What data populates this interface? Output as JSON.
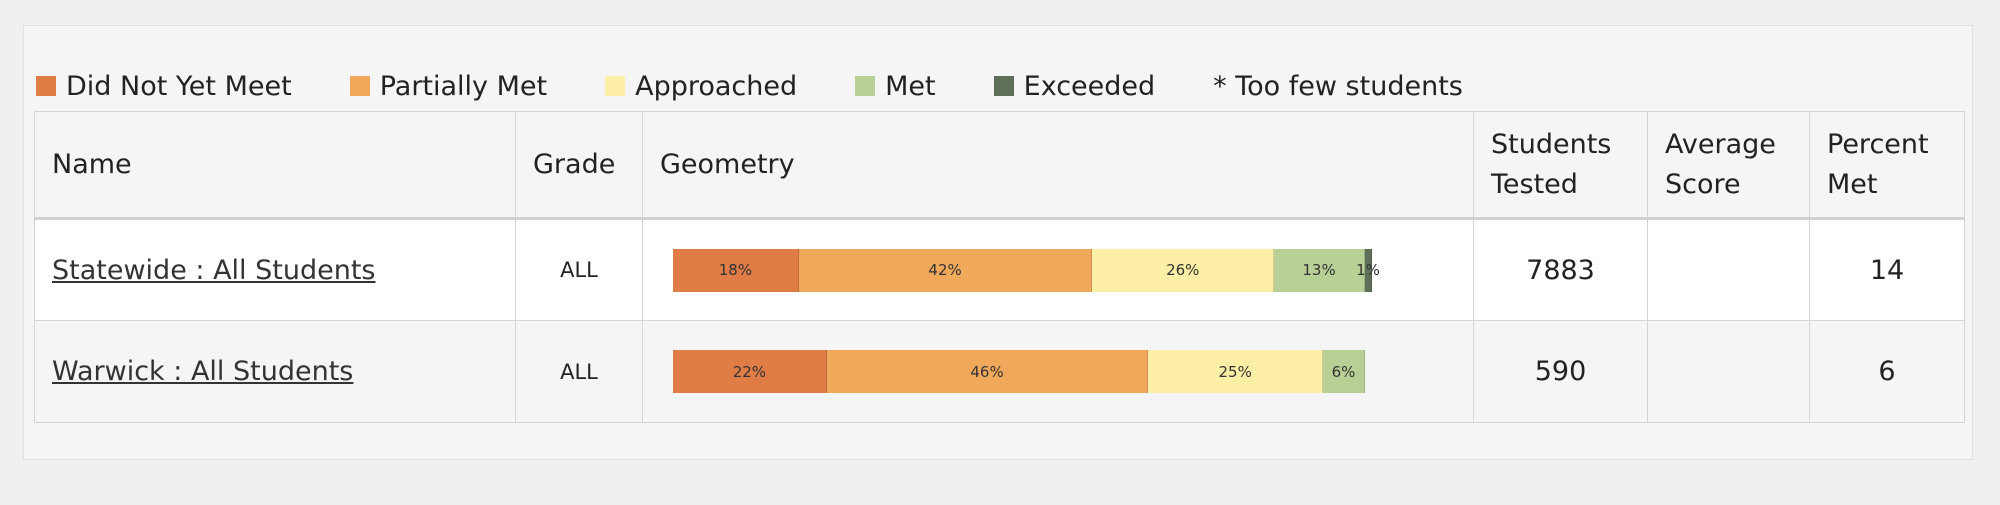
{
  "legend": [
    {
      "label": "Did Not Yet Meet",
      "color": "#e07c46"
    },
    {
      "label": "Partially Met",
      "color": "#f0a85b"
    },
    {
      "label": "Approached",
      "color": "#fdf0a6"
    },
    {
      "label": "Met",
      "color": "#b8cf96"
    },
    {
      "label": "Exceeded",
      "color": "#5e7158"
    }
  ],
  "legend_note": "* Too few students",
  "table": {
    "headers": [
      "Name",
      "Grade",
      "Geometry",
      "Students Tested",
      "Average Score",
      "Percent Met"
    ],
    "rows": [
      {
        "name": "Statewide : All Students",
        "grade": "ALL",
        "geometry": {
          "values": [
            18,
            42,
            26,
            13,
            1
          ],
          "value_labels": [
            "18%",
            "42%",
            "26%",
            "13%",
            "1%"
          ]
        },
        "students_tested": 7883,
        "percent_met": 14
      },
      {
        "name": "Warwick : All Students",
        "grade": "ALL",
        "geometry": {
          "values": [
            22,
            46,
            25,
            6
          ],
          "value_labels": [
            "22%",
            "46%",
            "25%",
            "6%"
          ]
        },
        "students_tested": 590,
        "percent_met": 6
      }
    ]
  }
}
